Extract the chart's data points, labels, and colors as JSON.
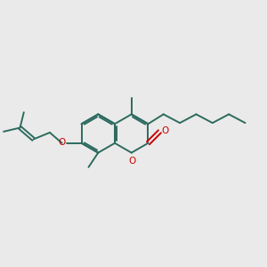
{
  "bg_color": "#eaeaea",
  "bond_color": "#2d6b5e",
  "oxygen_color": "#cc0000",
  "line_width": 1.4,
  "fig_size": [
    3.0,
    3.0
  ],
  "dpi": 100,
  "xlim": [
    0.0,
    1.0
  ],
  "ylim": [
    0.25,
    0.75
  ]
}
